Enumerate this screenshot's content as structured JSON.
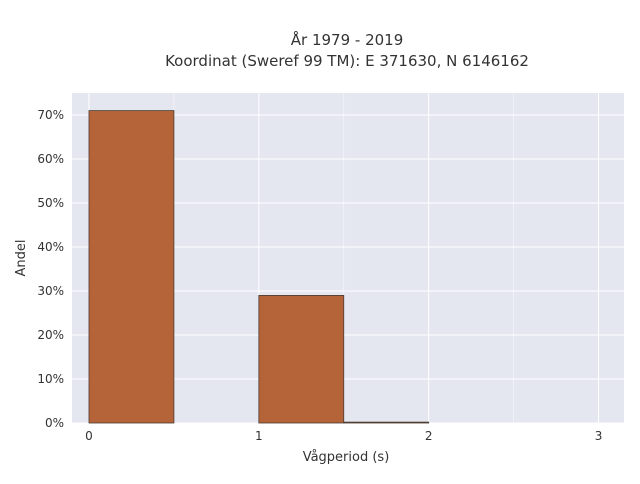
{
  "chart_data": {
    "type": "bar",
    "title_line1": "År 1979 - 2019",
    "title_line2": "Koordinat (Sweref 99 TM): E 371630, N 6146162",
    "xlabel": "Vågperiod (s)",
    "ylabel": "Andel",
    "bins": [
      {
        "x0": 0.0,
        "x1": 0.5,
        "value": 71.0
      },
      {
        "x0": 1.0,
        "x1": 1.5,
        "value": 29.0
      },
      {
        "x0": 1.5,
        "x1": 2.0,
        "value": 0.2
      }
    ],
    "xlim": [
      -0.1,
      3.15
    ],
    "ylim": [
      0,
      75
    ],
    "xticks": [
      {
        "value": 0,
        "label": "0"
      },
      {
        "value": 1,
        "label": "1"
      },
      {
        "value": 2,
        "label": "2"
      },
      {
        "value": 3,
        "label": "3"
      }
    ],
    "x_minor_grid": [
      0.5,
      1.5,
      2.5
    ],
    "yticks": [
      {
        "value": 0,
        "label": "0%"
      },
      {
        "value": 10,
        "label": "10%"
      },
      {
        "value": 20,
        "label": "20%"
      },
      {
        "value": 30,
        "label": "30%"
      },
      {
        "value": 40,
        "label": "40%"
      },
      {
        "value": 50,
        "label": "50%"
      },
      {
        "value": 60,
        "label": "60%"
      },
      {
        "value": 70,
        "label": "70%"
      }
    ],
    "grid": true,
    "colors": {
      "bar_fill": "#b5643a",
      "bar_stroke": "#4a3a30",
      "plot_bg": "#e5e7f0",
      "grid": "#ffffff"
    }
  }
}
